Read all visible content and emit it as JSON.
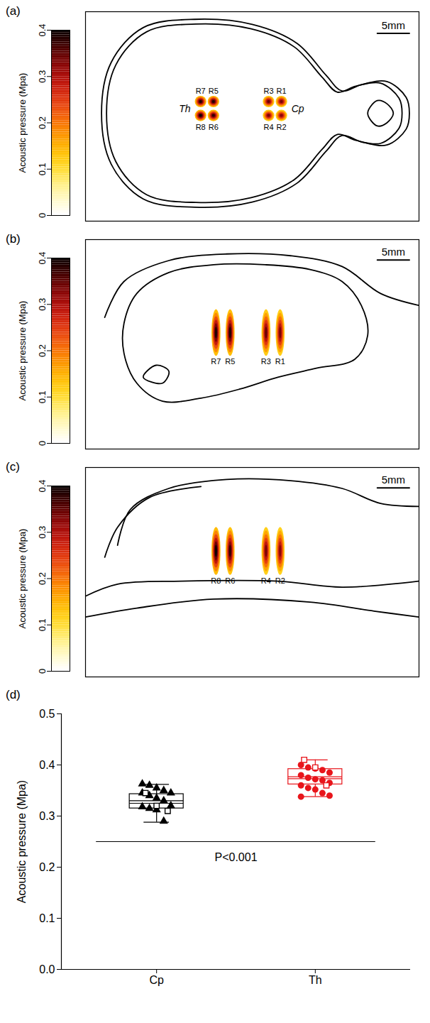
{
  "chart_data": [
    {
      "type": "heatmap",
      "panel": "(a)",
      "colorbar": {
        "label": "Acoustic pressure (Mpa)",
        "range": [
          0,
          0.4
        ],
        "ticks": [
          0,
          0.1,
          0.2,
          0.3,
          0.4
        ]
      },
      "xlim": [
        0,
        52
      ],
      "ylim": [
        0,
        33
      ],
      "tick_labels": false,
      "scale_bar": {
        "length": 5,
        "label": "5mm"
      },
      "focal_size": [
        1.8,
        1.8
      ],
      "spots": [
        {
          "label": "R1",
          "x": 30.6,
          "y": 18.8,
          "pressure": 0.33
        },
        {
          "label": "R2",
          "x": 30.6,
          "y": 16.6,
          "pressure": 0.32
        },
        {
          "label": "R3",
          "x": 28.6,
          "y": 18.8,
          "pressure": 0.34
        },
        {
          "label": "R4",
          "x": 28.6,
          "y": 16.6,
          "pressure": 0.33
        },
        {
          "label": "R5",
          "x": 20.0,
          "y": 18.8,
          "pressure": 0.38
        },
        {
          "label": "R6",
          "x": 20.0,
          "y": 16.6,
          "pressure": 0.37
        },
        {
          "label": "R7",
          "x": 18.0,
          "y": 18.8,
          "pressure": 0.38
        },
        {
          "label": "R8",
          "x": 18.0,
          "y": 16.6,
          "pressure": 0.39
        }
      ],
      "groups": [
        {
          "name": "Th",
          "spots": [
            "R5",
            "R6",
            "R7",
            "R8"
          ]
        },
        {
          "name": "Cp",
          "spots": [
            "R1",
            "R2",
            "R3",
            "R4"
          ]
        }
      ]
    },
    {
      "type": "heatmap",
      "panel": "(b)",
      "colorbar": {
        "label": "Acoustic pressure (Mpa)",
        "range": [
          0,
          0.4
        ],
        "ticks": [
          0,
          0.1,
          0.2,
          0.3,
          0.4
        ]
      },
      "xlim": [
        0,
        52
      ],
      "ylim": [
        0,
        35
      ],
      "tick_labels": false,
      "scale_bar": {
        "length": 5,
        "label": "5mm"
      },
      "focal_size": [
        1.4,
        7.8
      ],
      "spots": [
        {
          "label": "R7",
          "x": 20.4,
          "y": 19.4,
          "pressure": 0.38
        },
        {
          "label": "R5",
          "x": 22.6,
          "y": 19.4,
          "pressure": 0.38
        },
        {
          "label": "R3",
          "x": 28.2,
          "y": 19.4,
          "pressure": 0.34
        },
        {
          "label": "R1",
          "x": 30.4,
          "y": 19.4,
          "pressure": 0.33
        }
      ]
    },
    {
      "type": "heatmap",
      "panel": "(c)",
      "colorbar": {
        "label": "Acoustic pressure (Mpa)",
        "range": [
          0,
          0.4
        ],
        "ticks": [
          0,
          0.1,
          0.2,
          0.3,
          0.4
        ]
      },
      "xlim": [
        0,
        52
      ],
      "ylim": [
        0,
        35
      ],
      "tick_labels": false,
      "scale_bar": {
        "length": 5,
        "label": "5mm"
      },
      "focal_size": [
        1.4,
        8.0
      ],
      "spots": [
        {
          "label": "R8",
          "x": 20.4,
          "y": 21.0,
          "pressure": 0.39
        },
        {
          "label": "R6",
          "x": 22.6,
          "y": 21.0,
          "pressure": 0.37
        },
        {
          "label": "R4",
          "x": 28.2,
          "y": 21.0,
          "pressure": 0.33
        },
        {
          "label": "R2",
          "x": 30.4,
          "y": 21.0,
          "pressure": 0.32
        }
      ]
    },
    {
      "type": "box",
      "panel": "(d)",
      "y_label": "Acoustic pressure (Mpa)",
      "categories": [
        "Cp",
        "Th"
      ],
      "ylim": [
        0,
        0.5
      ],
      "yticks": [
        {
          "value": 0,
          "label": "0.0"
        },
        0.1,
        0.2,
        0.3,
        0.4,
        0.5
      ],
      "groups": [
        {
          "category": "Cp",
          "color": "#000000",
          "marker": "triangle",
          "open_marker": "square",
          "values": [
            0.363,
            0.36,
            0.355,
            0.35,
            0.345,
            0.345,
            0.34,
            0.335,
            0.33,
            0.32,
            0.318,
            0.315,
            0.312,
            0.29
          ],
          "open_values": [
            0.345,
            0.32,
            0.31
          ],
          "box": {
            "whisker_low": 0.288,
            "q1": 0.315,
            "median": 0.325,
            "mean": 0.33,
            "q3": 0.343,
            "whisker_high": 0.362
          }
        },
        {
          "category": "Th",
          "color": "#e8151b",
          "marker": "circle",
          "open_marker": "square",
          "values": [
            0.4,
            0.395,
            0.393,
            0.39,
            0.385,
            0.38,
            0.375,
            0.372,
            0.37,
            0.365,
            0.36,
            0.355,
            0.352,
            0.345,
            0.34,
            0.338
          ],
          "open_values": [
            0.41,
            0.395,
            0.36
          ],
          "box": {
            "whisker_low": 0.338,
            "q1": 0.362,
            "median": 0.373,
            "mean": 0.377,
            "q3": 0.392,
            "whisker_high": 0.41
          }
        }
      ],
      "annotation": {
        "text": "P<0.001",
        "y": 0.25
      }
    }
  ]
}
